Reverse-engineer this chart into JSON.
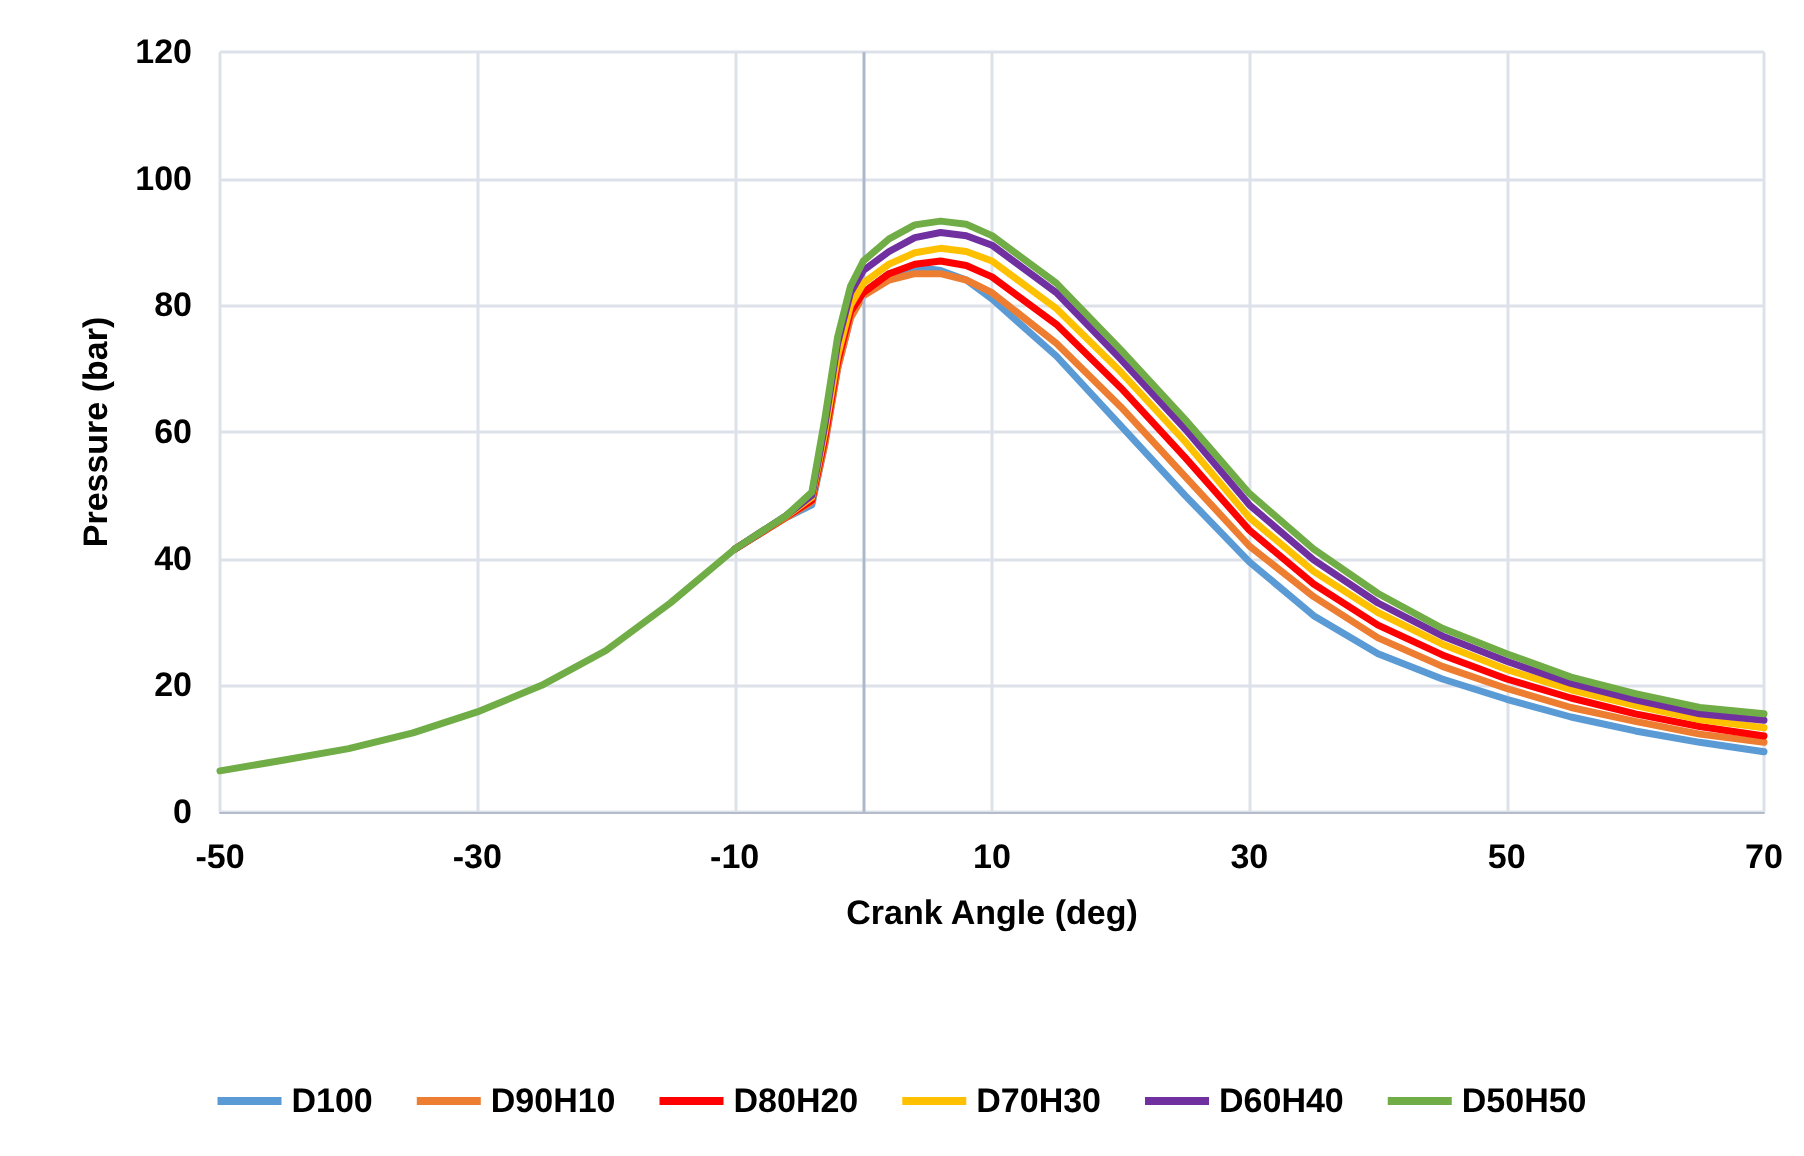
{
  "chart_data": {
    "type": "line",
    "xlabel": "Crank Angle (deg)",
    "ylabel": "Pressure (bar)",
    "x": [
      -50,
      -45,
      -40,
      -35,
      -30,
      -25,
      -20,
      -15,
      -10,
      -6,
      -4,
      -3,
      -2,
      -1,
      0,
      2,
      4,
      6,
      8,
      10,
      15,
      20,
      25,
      30,
      35,
      40,
      45,
      50,
      55,
      60,
      65,
      70
    ],
    "series": [
      {
        "name": "D100",
        "color": "#5b9bd5",
        "values": [
          null,
          null,
          null,
          null,
          null,
          null,
          null,
          null,
          41.5,
          46.5,
          48.5,
          58,
          70,
          78,
          82,
          85,
          86,
          85.5,
          84,
          81,
          72,
          61,
          50,
          39.5,
          31,
          25,
          21,
          17.8,
          15,
          12.8,
          11,
          9.5
        ]
      },
      {
        "name": "D90H10",
        "color": "#ed7d31",
        "values": [
          null,
          null,
          null,
          null,
          null,
          null,
          null,
          null,
          41.5,
          46.5,
          49,
          58,
          70,
          78,
          81.5,
          84,
          85,
          85,
          84,
          82,
          74,
          64,
          53,
          42,
          34,
          27.5,
          23,
          19.5,
          16.5,
          14.3,
          12.3,
          11
        ]
      },
      {
        "name": "D80H20",
        "color": "#ff0000",
        "values": [
          null,
          null,
          null,
          null,
          null,
          null,
          null,
          null,
          41.5,
          46.6,
          49.2,
          59,
          71,
          79,
          82,
          85,
          86.5,
          87,
          86.3,
          84.5,
          77,
          67,
          56,
          44.5,
          36,
          29.5,
          24.8,
          21,
          18,
          15.5,
          13.5,
          12
        ]
      },
      {
        "name": "D70H30",
        "color": "#ffc000",
        "values": [
          null,
          null,
          null,
          null,
          null,
          null,
          null,
          null,
          41.5,
          46.7,
          49.7,
          60,
          72,
          80,
          83.5,
          86.5,
          88.3,
          89,
          88.5,
          87,
          79.5,
          69.5,
          58.5,
          46.5,
          38,
          31.5,
          26.5,
          22.5,
          19.3,
          16.8,
          14.6,
          13.3
        ]
      },
      {
        "name": "D60H40",
        "color": "#7030a0",
        "values": [
          null,
          null,
          null,
          null,
          null,
          null,
          null,
          null,
          41.5,
          46.8,
          50,
          61,
          74,
          82,
          85.5,
          88.5,
          90.7,
          91.5,
          91,
          89.5,
          82,
          71.5,
          60.5,
          48.5,
          39.8,
          33,
          27.8,
          23.8,
          20.3,
          17.7,
          15.5,
          14.5
        ]
      },
      {
        "name": "D50H50",
        "color": "#70ad47",
        "values": [
          6.5,
          8.2,
          10,
          12.5,
          15.8,
          20,
          25.5,
          33,
          41.5,
          46.8,
          50.5,
          62,
          75,
          83,
          87,
          90.5,
          92.7,
          93.3,
          92.8,
          91,
          83.5,
          73,
          62,
          50.3,
          41.5,
          34.5,
          29,
          25,
          21.3,
          18.7,
          16.5,
          15.5
        ]
      }
    ],
    "xlim": [
      -50,
      70
    ],
    "xticks": [
      -50,
      -30,
      -10,
      10,
      30,
      50,
      70
    ],
    "ylim": [
      0,
      120
    ],
    "yticks": [
      0,
      20,
      40,
      60,
      80,
      100,
      120
    ],
    "ref_lines": [
      {
        "axis": "x",
        "value": 0,
        "color": "#adb9ca"
      }
    ],
    "grid": true,
    "legend": "bottom",
    "marker": "none",
    "line_style": "solid"
  }
}
